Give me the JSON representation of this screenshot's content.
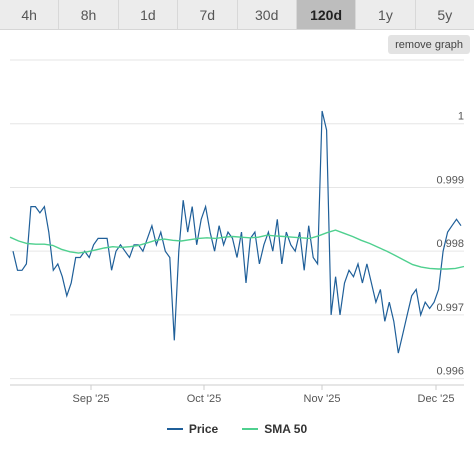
{
  "tabs": [
    {
      "label": "4h",
      "active": false
    },
    {
      "label": "8h",
      "active": false
    },
    {
      "label": "1d",
      "active": false
    },
    {
      "label": "7d",
      "active": false
    },
    {
      "label": "30d",
      "active": false
    },
    {
      "label": "120d",
      "active": true
    },
    {
      "label": "1y",
      "active": false
    },
    {
      "label": "5y",
      "active": false
    }
  ],
  "remove_graph_label": "remove graph",
  "colors": {
    "price": "#1f5f99",
    "sma": "#4fd08f",
    "grid": "#e6e6e6"
  },
  "chart_data": {
    "type": "line",
    "x_tick_labels": [
      "Sep '25",
      "Oct '25",
      "Nov '25",
      "Dec '25"
    ],
    "y_tick_labels": [
      "0.996",
      "0.997",
      "0.998",
      "0.999",
      "1"
    ],
    "ylim": [
      0.9959,
      1.001
    ],
    "grid": true,
    "legend_position": "bottom-center",
    "series": [
      {
        "name": "Price",
        "values": [
          0.998,
          0.9977,
          0.9977,
          0.9978,
          0.9987,
          0.9987,
          0.9986,
          0.9987,
          0.9983,
          0.9977,
          0.9978,
          0.9976,
          0.9973,
          0.9975,
          0.9979,
          0.9979,
          0.998,
          0.9979,
          0.9981,
          0.9982,
          0.9982,
          0.9982,
          0.9977,
          0.998,
          0.9981,
          0.998,
          0.9979,
          0.9981,
          0.9981,
          0.998,
          0.9982,
          0.9984,
          0.9981,
          0.9983,
          0.998,
          0.9979,
          0.9966,
          0.998,
          0.9988,
          0.9983,
          0.9987,
          0.9981,
          0.9985,
          0.9987,
          0.9983,
          0.998,
          0.9984,
          0.9981,
          0.9983,
          0.9982,
          0.9979,
          0.9983,
          0.9975,
          0.9982,
          0.9983,
          0.9978,
          0.9981,
          0.9983,
          0.998,
          0.9985,
          0.9978,
          0.9983,
          0.9981,
          0.998,
          0.9983,
          0.9977,
          0.9984,
          0.9979,
          0.9978,
          1.0002,
          0.9999,
          0.997,
          0.9976,
          0.997,
          0.9975,
          0.9977,
          0.9976,
          0.9978,
          0.9975,
          0.9978,
          0.9975,
          0.9972,
          0.9974,
          0.9969,
          0.9972,
          0.9969,
          0.9964,
          0.9967,
          0.997,
          0.9973,
          0.9974,
          0.997,
          0.9972,
          0.9971,
          0.9972,
          0.9974,
          0.998,
          0.9983,
          0.9984,
          0.9985,
          0.9984
        ]
      },
      {
        "name": "SMA 50",
        "values": [
          0.99822,
          0.99816,
          0.99812,
          0.99811,
          0.99811,
          0.99809,
          0.99803,
          0.99799,
          0.99797,
          0.99799,
          0.99802,
          0.99805,
          0.99807,
          0.99806,
          0.99807,
          0.99809,
          0.99813,
          0.99817,
          0.99819,
          0.99817,
          0.99816,
          0.99818,
          0.9982,
          0.99821,
          0.9982,
          0.99822,
          0.99823,
          0.99822,
          0.99821,
          0.99822,
          0.99825,
          0.99824,
          0.99823,
          0.99822,
          0.99821,
          0.9982,
          0.99824,
          0.99829,
          0.99833,
          0.99828,
          0.99823,
          0.99817,
          0.99812,
          0.99806,
          0.998,
          0.99793,
          0.99786,
          0.99779,
          0.99775,
          0.99773,
          0.99772,
          0.99772,
          0.99773,
          0.99776
        ]
      }
    ]
  }
}
